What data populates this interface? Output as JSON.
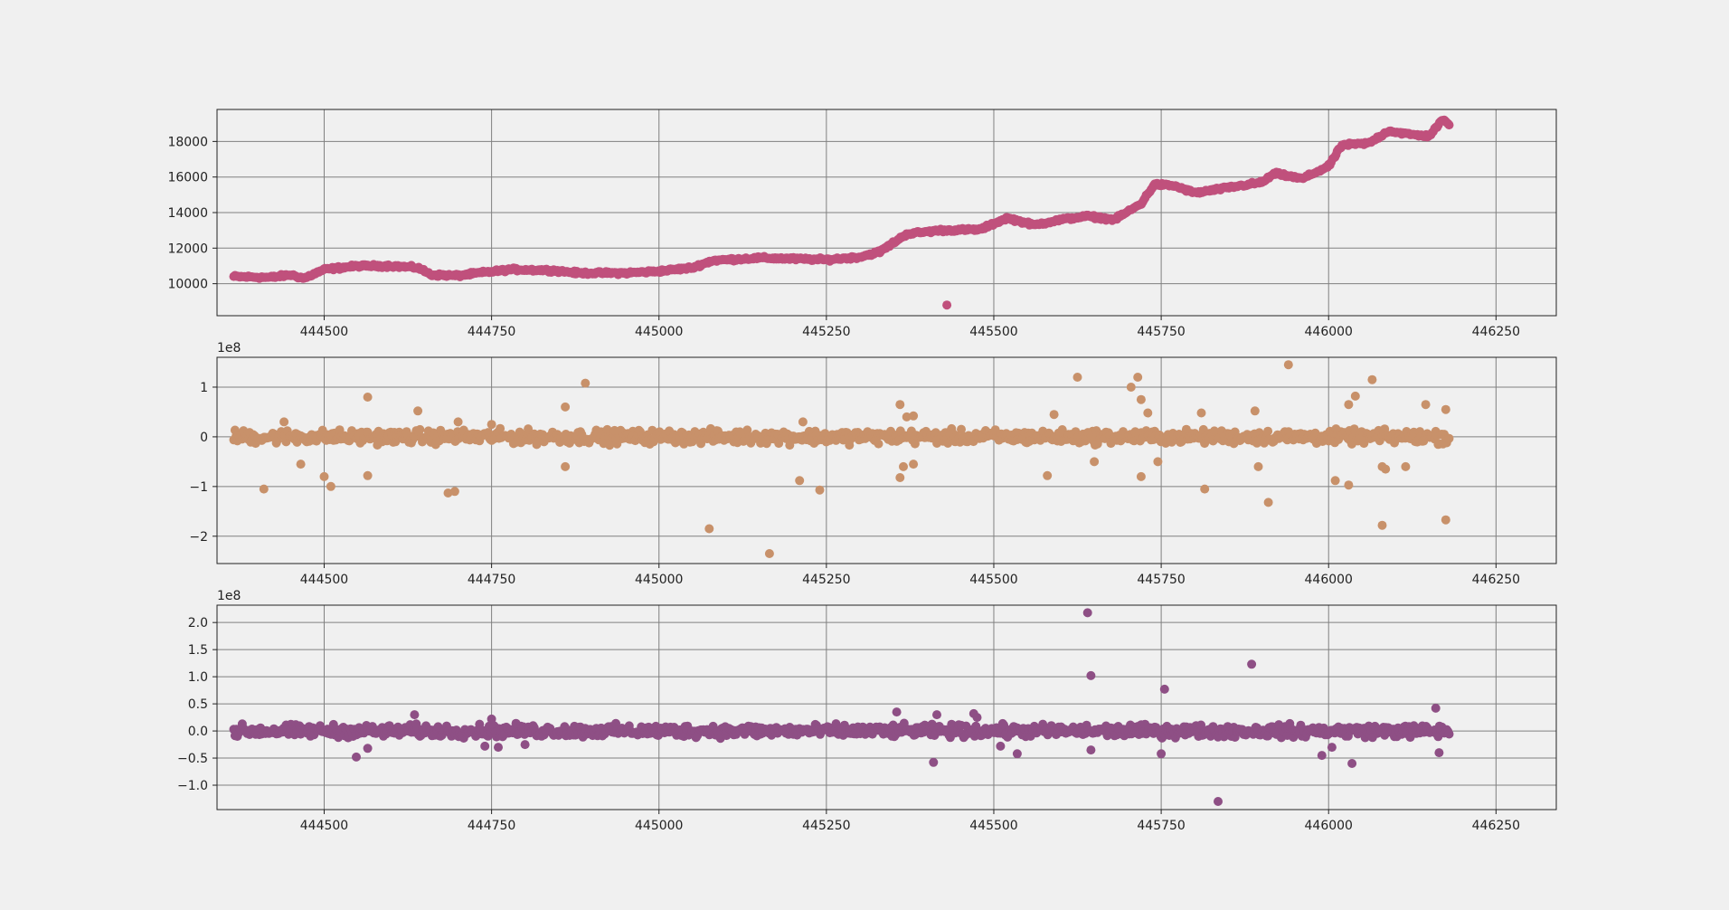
{
  "chart_data": [
    {
      "type": "scatter",
      "color": "#c0507c",
      "xlim": [
        444340,
        446340
      ],
      "ylim": [
        8200,
        19800
      ],
      "offset_text": "",
      "x_ticks": [
        444500,
        444750,
        445000,
        445250,
        445500,
        445750,
        446000,
        446250
      ],
      "x_tick_labels": [
        "444500",
        "444750",
        "445000",
        "445250",
        "445500",
        "445750",
        "446000",
        "446250"
      ],
      "y_ticks": [
        10000,
        12000,
        14000,
        16000,
        18000
      ],
      "y_tick_labels": [
        "10000",
        "12000",
        "14000",
        "16000",
        "18000"
      ],
      "grid": true,
      "series_x_range": [
        444365,
        446180
      ],
      "trend": [
        [
          444365,
          10400
        ],
        [
          444420,
          10350
        ],
        [
          444450,
          10500
        ],
        [
          444470,
          10300
        ],
        [
          444500,
          10800
        ],
        [
          444550,
          11000
        ],
        [
          444600,
          11000
        ],
        [
          444640,
          10900
        ],
        [
          444660,
          10500
        ],
        [
          444700,
          10450
        ],
        [
          444730,
          10600
        ],
        [
          444780,
          10800
        ],
        [
          444840,
          10750
        ],
        [
          444880,
          10600
        ],
        [
          444950,
          10600
        ],
        [
          445000,
          10700
        ],
        [
          445050,
          10900
        ],
        [
          445080,
          11300
        ],
        [
          445150,
          11450
        ],
        [
          445200,
          11400
        ],
        [
          445250,
          11350
        ],
        [
          445300,
          11500
        ],
        [
          445330,
          11800
        ],
        [
          445370,
          12800
        ],
        [
          445420,
          13000
        ],
        [
          445480,
          13050
        ],
        [
          445520,
          13700
        ],
        [
          445560,
          13300
        ],
        [
          445600,
          13600
        ],
        [
          445640,
          13800
        ],
        [
          445680,
          13600
        ],
        [
          445720,
          14500
        ],
        [
          445740,
          15600
        ],
        [
          445770,
          15500
        ],
        [
          445800,
          15100
        ],
        [
          445850,
          15400
        ],
        [
          445900,
          15700
        ],
        [
          445920,
          16200
        ],
        [
          445960,
          15900
        ],
        [
          446000,
          16600
        ],
        [
          446020,
          17800
        ],
        [
          446060,
          17900
        ],
        [
          446090,
          18600
        ],
        [
          446120,
          18400
        ],
        [
          446150,
          18300
        ],
        [
          446170,
          19200
        ],
        [
          446180,
          19000
        ]
      ],
      "noise": 70,
      "outliers": [
        [
          445430,
          8800
        ]
      ]
    },
    {
      "type": "scatter",
      "color": "#c8916a",
      "xlim": [
        444340,
        446340
      ],
      "ylim": [
        -2.55,
        1.6
      ],
      "offset_text": "1e8",
      "x_ticks": [
        444500,
        444750,
        445000,
        445250,
        445500,
        445750,
        446000,
        446250
      ],
      "x_tick_labels": [
        "444500",
        "444750",
        "445000",
        "445250",
        "445500",
        "445750",
        "446000",
        "446250"
      ],
      "y_ticks": [
        -2,
        -1,
        0,
        1
      ],
      "y_tick_labels": [
        "−2",
        "−1",
        "0",
        "1"
      ],
      "grid": true,
      "series_x_range": [
        444365,
        446180
      ],
      "band": 0.12,
      "outliers": [
        [
          444410,
          -1.05
        ],
        [
          444440,
          0.3
        ],
        [
          444465,
          -0.55
        ],
        [
          444500,
          -0.8
        ],
        [
          444510,
          -1.0
        ],
        [
          444565,
          0.8
        ],
        [
          444565,
          -0.78
        ],
        [
          444640,
          0.52
        ],
        [
          444685,
          -1.13
        ],
        [
          444695,
          -1.1
        ],
        [
          444700,
          0.3
        ],
        [
          444750,
          0.25
        ],
        [
          444860,
          0.6
        ],
        [
          444860,
          -0.6
        ],
        [
          444890,
          1.08
        ],
        [
          445075,
          -1.85
        ],
        [
          445165,
          -2.35
        ],
        [
          445210,
          -0.88
        ],
        [
          445215,
          0.3
        ],
        [
          445240,
          -1.07
        ],
        [
          445360,
          0.65
        ],
        [
          445360,
          -0.82
        ],
        [
          445365,
          -0.6
        ],
        [
          445370,
          0.4
        ],
        [
          445380,
          -0.55
        ],
        [
          445380,
          0.42
        ],
        [
          445580,
          -0.78
        ],
        [
          445590,
          0.45
        ],
        [
          445625,
          1.2
        ],
        [
          445650,
          -0.5
        ],
        [
          445705,
          1.0
        ],
        [
          445715,
          1.2
        ],
        [
          445720,
          0.75
        ],
        [
          445720,
          -0.8
        ],
        [
          445730,
          0.48
        ],
        [
          445745,
          -0.5
        ],
        [
          445815,
          -1.05
        ],
        [
          445810,
          0.48
        ],
        [
          445890,
          0.52
        ],
        [
          445895,
          -0.6
        ],
        [
          445910,
          -1.32
        ],
        [
          445940,
          1.45
        ],
        [
          446010,
          -0.88
        ],
        [
          446030,
          -0.97
        ],
        [
          446030,
          0.65
        ],
        [
          446040,
          0.82
        ],
        [
          446065,
          1.15
        ],
        [
          446080,
          -1.78
        ],
        [
          446080,
          -0.6
        ],
        [
          446085,
          -0.65
        ],
        [
          446115,
          -0.6
        ],
        [
          446145,
          0.65
        ],
        [
          446175,
          -1.67
        ],
        [
          446175,
          0.55
        ]
      ]
    },
    {
      "type": "scatter",
      "color": "#8e4f85",
      "xlim": [
        444340,
        446340
      ],
      "ylim": [
        -1.45,
        2.32
      ],
      "offset_text": "1e8",
      "x_ticks": [
        444500,
        444750,
        445000,
        445250,
        445500,
        445750,
        446000,
        446250
      ],
      "x_tick_labels": [
        "444500",
        "444750",
        "445000",
        "445250",
        "445500",
        "445750",
        "446000",
        "446250"
      ],
      "y_ticks": [
        -1.0,
        -0.5,
        0.0,
        0.5,
        1.0,
        1.5,
        2.0
      ],
      "y_tick_labels": [
        "−1.0",
        "−0.5",
        "0.0",
        "0.5",
        "1.0",
        "1.5",
        "2.0"
      ],
      "grid": true,
      "series_x_range": [
        444365,
        446180
      ],
      "band": 0.1,
      "outliers": [
        [
          444548,
          -0.48
        ],
        [
          444565,
          -0.32
        ],
        [
          444635,
          0.3
        ],
        [
          444740,
          -0.28
        ],
        [
          444750,
          0.22
        ],
        [
          444760,
          -0.3
        ],
        [
          444800,
          -0.25
        ],
        [
          445355,
          0.35
        ],
        [
          445410,
          -0.58
        ],
        [
          445415,
          0.3
        ],
        [
          445470,
          0.32
        ],
        [
          445475,
          0.25
        ],
        [
          445535,
          -0.42
        ],
        [
          445510,
          -0.28
        ],
        [
          445640,
          2.18
        ],
        [
          445645,
          1.02
        ],
        [
          445645,
          -0.35
        ],
        [
          445755,
          0.77
        ],
        [
          445750,
          -0.42
        ],
        [
          445835,
          -1.3
        ],
        [
          445885,
          1.23
        ],
        [
          445990,
          -0.45
        ],
        [
          446005,
          -0.3
        ],
        [
          446035,
          -0.6
        ],
        [
          446160,
          0.42
        ],
        [
          446165,
          -0.4
        ]
      ]
    }
  ]
}
